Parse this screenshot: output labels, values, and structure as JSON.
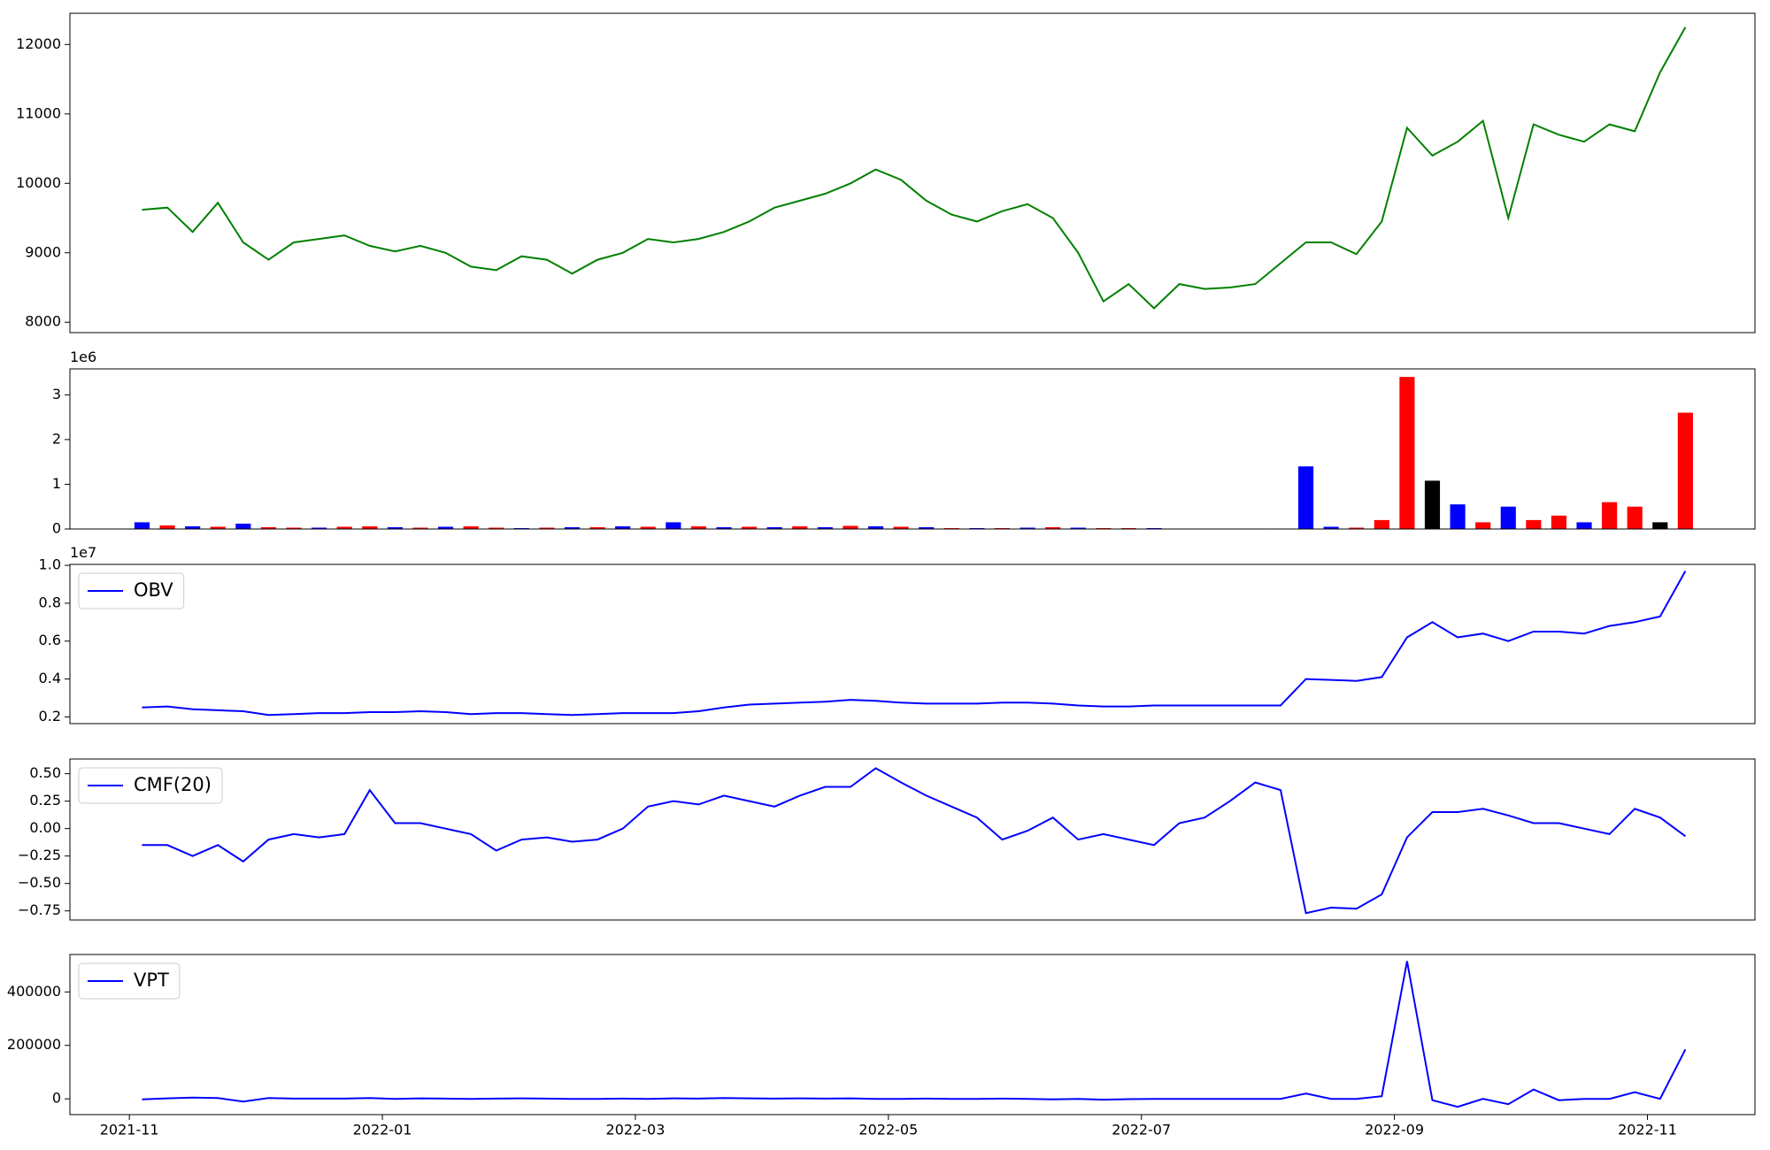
{
  "chart_data": [
    {
      "type": "line",
      "x": [
        0.1,
        0.3,
        0.5,
        0.7,
        0.9,
        1.1,
        1.3,
        1.5,
        1.7,
        1.9,
        2.1,
        2.3,
        2.5,
        2.7,
        2.9,
        3.1,
        3.3,
        3.5,
        3.7,
        3.9,
        4.1,
        4.3,
        4.5,
        4.7,
        4.9,
        5.1,
        5.3,
        5.5,
        5.7,
        5.9,
        6.1,
        6.3,
        6.5,
        6.7,
        6.9,
        7.1,
        7.3,
        7.5,
        7.7,
        7.9,
        8.1,
        8.3,
        8.5,
        8.7,
        8.9,
        9.1,
        9.3,
        9.5,
        9.7,
        9.9,
        10.1,
        10.3,
        10.5,
        10.7,
        10.9,
        11.1,
        11.3,
        11.5,
        11.7,
        11.9,
        12.1,
        12.3
      ],
      "xlim": [
        -0.47,
        12.85
      ],
      "series": [
        {
          "color": "#008000",
          "values": [
            9620,
            9650,
            9300,
            9720,
            9150,
            8900,
            9150,
            9200,
            9250,
            9100,
            9020,
            9100,
            9000,
            8800,
            8750,
            8950,
            8900,
            8700,
            8900,
            9000,
            9200,
            9150,
            9200,
            9300,
            9450,
            9650,
            9750,
            9850,
            10000,
            10200,
            10050,
            9750,
            9550,
            9450,
            9600,
            9700,
            9500,
            9000,
            8300,
            8550,
            8200,
            8550,
            8480,
            8500,
            8550,
            8850,
            9150,
            9150,
            8980,
            9450,
            10800,
            10400,
            10600,
            10900,
            9500,
            10850,
            10700,
            10600,
            10850,
            10750,
            11600,
            12250
          ]
        }
      ],
      "ylim": [
        7850,
        12450
      ],
      "yticks": [
        8000,
        9000,
        10000,
        11000,
        12000
      ]
    },
    {
      "type": "bar",
      "x": [
        0.1,
        0.3,
        0.5,
        0.7,
        0.9,
        1.1,
        1.3,
        1.5,
        1.7,
        1.9,
        2.1,
        2.3,
        2.5,
        2.7,
        2.9,
        3.1,
        3.3,
        3.5,
        3.7,
        3.9,
        4.1,
        4.3,
        4.5,
        4.7,
        4.9,
        5.1,
        5.3,
        5.5,
        5.7,
        5.9,
        6.1,
        6.3,
        6.5,
        6.7,
        6.9,
        7.1,
        7.3,
        7.5,
        7.7,
        7.9,
        8.1,
        8.3,
        8.5,
        8.7,
        8.9,
        9.1,
        9.3,
        9.5,
        9.7,
        9.9,
        10.1,
        10.3,
        10.5,
        10.7,
        10.9,
        11.1,
        11.3,
        11.5,
        11.7,
        11.9,
        12.1,
        12.3
      ],
      "xlim": [
        -0.47,
        12.85
      ],
      "values": [
        150000,
        80000,
        60000,
        50000,
        120000,
        40000,
        30000,
        30000,
        50000,
        60000,
        40000,
        30000,
        50000,
        60000,
        30000,
        20000,
        30000,
        40000,
        40000,
        60000,
        50000,
        150000,
        60000,
        40000,
        50000,
        40000,
        60000,
        40000,
        70000,
        60000,
        50000,
        40000,
        20000,
        20000,
        20000,
        30000,
        40000,
        30000,
        20000,
        20000,
        20000,
        10000,
        10000,
        10000,
        10000,
        10000,
        1400000,
        50000,
        30000,
        200000,
        3400000,
        1080000,
        550000,
        150000,
        500000,
        200000,
        300000,
        150000,
        600000,
        500000,
        150000,
        2600000
      ],
      "colors": [
        "#0000ff",
        "#ff0000",
        "#0000ff",
        "#ff0000",
        "#0000ff",
        "#ff0000",
        "#ff0000",
        "#0000ff",
        "#ff0000",
        "#ff0000",
        "#0000ff",
        "#ff0000",
        "#0000ff",
        "#ff0000",
        "#ff0000",
        "#0000ff",
        "#ff0000",
        "#0000ff",
        "#ff0000",
        "#0000ff",
        "#ff0000",
        "#0000ff",
        "#ff0000",
        "#0000ff",
        "#ff0000",
        "#0000ff",
        "#ff0000",
        "#0000ff",
        "#ff0000",
        "#0000ff",
        "#ff0000",
        "#0000ff",
        "#ff0000",
        "#0000ff",
        "#ff0000",
        "#0000ff",
        "#ff0000",
        "#0000ff",
        "#ff0000",
        "#ff0000",
        "#0000ff",
        "#ff0000",
        "#0000ff",
        "#ff0000",
        "#0000ff",
        "#ff0000",
        "#0000ff",
        "#0000ff",
        "#ff0000",
        "#ff0000",
        "#ff0000",
        "#000000",
        "#0000ff",
        "#ff0000",
        "#0000ff",
        "#ff0000",
        "#ff0000",
        "#0000ff",
        "#ff0000",
        "#ff0000",
        "#000000",
        "#ff0000"
      ],
      "ylim": [
        0,
        3580000
      ],
      "yticks": [
        {
          "value": 0,
          "label": "0"
        },
        {
          "value": 1000000,
          "label": "1"
        },
        {
          "value": 2000000,
          "label": "2"
        },
        {
          "value": 3000000,
          "label": "3"
        }
      ],
      "y_offset_label": "1e6"
    },
    {
      "type": "line",
      "x": [
        0.1,
        0.3,
        0.5,
        0.7,
        0.9,
        1.1,
        1.3,
        1.5,
        1.7,
        1.9,
        2.1,
        2.3,
        2.5,
        2.7,
        2.9,
        3.1,
        3.3,
        3.5,
        3.7,
        3.9,
        4.1,
        4.3,
        4.5,
        4.7,
        4.9,
        5.1,
        5.3,
        5.5,
        5.7,
        5.9,
        6.1,
        6.3,
        6.5,
        6.7,
        6.9,
        7.1,
        7.3,
        7.5,
        7.7,
        7.9,
        8.1,
        8.3,
        8.5,
        8.7,
        8.9,
        9.1,
        9.3,
        9.5,
        9.7,
        9.9,
        10.1,
        10.3,
        10.5,
        10.7,
        10.9,
        11.1,
        11.3,
        11.5,
        11.7,
        11.9,
        12.1,
        12.3
      ],
      "xlim": [
        -0.47,
        12.85
      ],
      "series": [
        {
          "name": "OBV",
          "color": "#0000ff",
          "values": [
            2500000,
            2550000,
            2400000,
            2350000,
            2300000,
            2100000,
            2150000,
            2200000,
            2200000,
            2250000,
            2250000,
            2300000,
            2250000,
            2150000,
            2200000,
            2200000,
            2150000,
            2100000,
            2150000,
            2200000,
            2200000,
            2200000,
            2300000,
            2500000,
            2650000,
            2700000,
            2750000,
            2800000,
            2900000,
            2850000,
            2750000,
            2700000,
            2700000,
            2700000,
            2750000,
            2750000,
            2700000,
            2600000,
            2550000,
            2550000,
            2600000,
            2600000,
            2600000,
            2600000,
            2600000,
            2600000,
            4000000,
            3950000,
            3900000,
            4100000,
            6200000,
            7000000,
            6200000,
            6400000,
            6000000,
            6500000,
            6500000,
            6400000,
            6800000,
            7000000,
            7300000,
            9700000
          ]
        }
      ],
      "ylim": [
        1645000,
        10050000
      ],
      "yticks": [
        {
          "value": 2000000,
          "label": "0.2"
        },
        {
          "value": 4000000,
          "label": "0.4"
        },
        {
          "value": 6000000,
          "label": "0.6"
        },
        {
          "value": 8000000,
          "label": "0.8"
        },
        {
          "value": 10000000,
          "label": "1.0"
        }
      ],
      "y_offset_label": "1e7",
      "legend": "upper left"
    },
    {
      "type": "line",
      "x": [
        0.1,
        0.3,
        0.5,
        0.7,
        0.9,
        1.1,
        1.3,
        1.5,
        1.7,
        1.9,
        2.1,
        2.3,
        2.5,
        2.7,
        2.9,
        3.1,
        3.3,
        3.5,
        3.7,
        3.9,
        4.1,
        4.3,
        4.5,
        4.7,
        4.9,
        5.1,
        5.3,
        5.5,
        5.7,
        5.9,
        6.1,
        6.3,
        6.5,
        6.7,
        6.9,
        7.1,
        7.3,
        7.5,
        7.7,
        7.9,
        8.1,
        8.3,
        8.5,
        8.7,
        8.9,
        9.1,
        9.3,
        9.5,
        9.7,
        9.9,
        10.1,
        10.3,
        10.5,
        10.7,
        10.9,
        11.1,
        11.3,
        11.5,
        11.7,
        11.9,
        12.1,
        12.3
      ],
      "xlim": [
        -0.47,
        12.85
      ],
      "series": [
        {
          "name": "CMF(20)",
          "color": "#0000ff",
          "values": [
            -0.15,
            -0.15,
            -0.25,
            -0.15,
            -0.3,
            -0.1,
            -0.05,
            -0.08,
            -0.05,
            0.35,
            0.05,
            0.05,
            0.0,
            -0.05,
            -0.2,
            -0.1,
            -0.08,
            -0.12,
            -0.1,
            0.0,
            0.2,
            0.25,
            0.22,
            0.3,
            0.25,
            0.2,
            0.3,
            0.38,
            0.38,
            0.55,
            0.42,
            0.3,
            0.2,
            0.1,
            -0.1,
            -0.02,
            0.1,
            -0.1,
            -0.05,
            -0.1,
            -0.15,
            0.05,
            0.1,
            0.25,
            0.42,
            0.35,
            -0.77,
            -0.72,
            -0.73,
            -0.6,
            -0.08,
            0.15,
            0.15,
            0.18,
            0.12,
            0.05,
            0.05,
            0.0,
            -0.05,
            0.18,
            0.1,
            -0.07
          ]
        }
      ],
      "ylim": [
        -0.833,
        0.634
      ],
      "yticks": [
        {
          "value": -0.75,
          "label": "−0.75"
        },
        {
          "value": -0.5,
          "label": "−0.50"
        },
        {
          "value": -0.25,
          "label": "−0.25"
        },
        {
          "value": 0,
          "label": "0.00"
        },
        {
          "value": 0.25,
          "label": "0.25"
        },
        {
          "value": 0.5,
          "label": "0.50"
        }
      ],
      "legend": "upper left"
    },
    {
      "type": "line",
      "x": [
        0.1,
        0.3,
        0.5,
        0.7,
        0.9,
        1.1,
        1.3,
        1.5,
        1.7,
        1.9,
        2.1,
        2.3,
        2.5,
        2.7,
        2.9,
        3.1,
        3.3,
        3.5,
        3.7,
        3.9,
        4.1,
        4.3,
        4.5,
        4.7,
        4.9,
        5.1,
        5.3,
        5.5,
        5.7,
        5.9,
        6.1,
        6.3,
        6.5,
        6.7,
        6.9,
        7.1,
        7.3,
        7.5,
        7.7,
        7.9,
        8.1,
        8.3,
        8.5,
        8.7,
        8.9,
        9.1,
        9.3,
        9.5,
        9.7,
        9.9,
        10.1,
        10.3,
        10.5,
        10.7,
        10.9,
        11.1,
        11.3,
        11.5,
        11.7,
        11.9,
        12.1,
        12.3
      ],
      "xlim": [
        -0.47,
        12.85
      ],
      "xticks": [
        {
          "value": 0,
          "label": "2021-11"
        },
        {
          "value": 2,
          "label": "2022-01"
        },
        {
          "value": 4,
          "label": "2022-03"
        },
        {
          "value": 6,
          "label": "2022-05"
        },
        {
          "value": 8,
          "label": "2022-07"
        },
        {
          "value": 10,
          "label": "2022-09"
        },
        {
          "value": 12,
          "label": "2022-11"
        }
      ],
      "series": [
        {
          "name": "VPT",
          "color": "#0000ff",
          "values": [
            -2000,
            2000,
            5000,
            3000,
            -10000,
            3000,
            1000,
            1000,
            1000,
            3000,
            0,
            2000,
            1000,
            0,
            1000,
            2000,
            1000,
            0,
            0,
            1000,
            0,
            2000,
            1000,
            3000,
            2000,
            1000,
            2000,
            1000,
            2000,
            0,
            0,
            1000,
            0,
            0,
            1000,
            0,
            -2000,
            0,
            -3000,
            -1000,
            0,
            0,
            0,
            0,
            0,
            0,
            20000,
            0,
            0,
            10000,
            515000,
            -5000,
            -30000,
            0,
            -20000,
            35000,
            -5000,
            0,
            0,
            25000,
            0,
            185000
          ]
        }
      ],
      "ylim": [
        -59000,
        540000
      ],
      "yticks": [
        0,
        200000,
        400000
      ],
      "legend": "upper left"
    }
  ]
}
